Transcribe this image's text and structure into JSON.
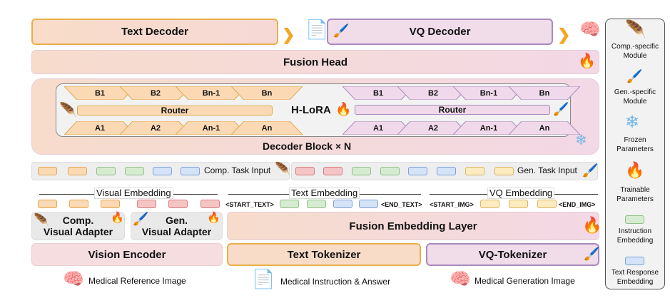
{
  "top": {
    "text_decoder": "Text Decoder",
    "vq_decoder": "VQ Decoder"
  },
  "fusion_head": "Fusion Head",
  "hlora": {
    "label": "H-LoRA",
    "comp_b": [
      "B1",
      "B2",
      "Bn-1",
      "Bn"
    ],
    "comp_a": [
      "A1",
      "A2",
      "An-1",
      "An"
    ],
    "gen_b": [
      "B1",
      "B2",
      "Bn-1",
      "Bn"
    ],
    "gen_a": [
      "A1",
      "A2",
      "An-1",
      "An"
    ],
    "router": "Router"
  },
  "decoder_block": "Decoder Block",
  "decoder_times": "×",
  "decoder_n": "N",
  "task_inputs": {
    "comp": "Comp. Task Input",
    "gen": "Gen. Task Input"
  },
  "embeddings": {
    "visual": "Visual Embedding",
    "text": "Text Embedding",
    "vq": "VQ Embedding",
    "start_text": "<START_TEXT>",
    "end_text": "<END_TEXT>",
    "start_img": "<START_IMG>",
    "end_img": "<END_IMG>"
  },
  "adapters": {
    "comp": "Comp.",
    "comp2": "Visual Adapter",
    "gen": "Gen.",
    "gen2": "Visual Adapter"
  },
  "fusion_embedding": "Fusion Embedding Layer",
  "encoders": {
    "vision": "Vision Encoder",
    "text": "Text Tokenizer",
    "vq": "VQ-Tokenizer"
  },
  "inputs": {
    "ref": "Medical Reference Image",
    "instr": "Medical Instruction & Answer",
    "gen": "Medical Generation Image"
  },
  "legend": [
    {
      "label": "Comp.-specific Module",
      "icon": "feather-icon"
    },
    {
      "label": "Gen.-specific Module",
      "icon": "paintbrush-icon"
    },
    {
      "label": "Frozen Parameters",
      "icon": "snowflake-icon"
    },
    {
      "label": "Trainable Parameters",
      "icon": "fire-icon"
    },
    {
      "label": "Instruction Embedding",
      "color": "#d6ecd0"
    },
    {
      "label": "Text Response Embedding",
      "color": "#d5e3f8"
    }
  ],
  "colors": {
    "comp": "#e8a33c",
    "gen": "#a98bbd",
    "orange_arrow": "#f5a623"
  }
}
